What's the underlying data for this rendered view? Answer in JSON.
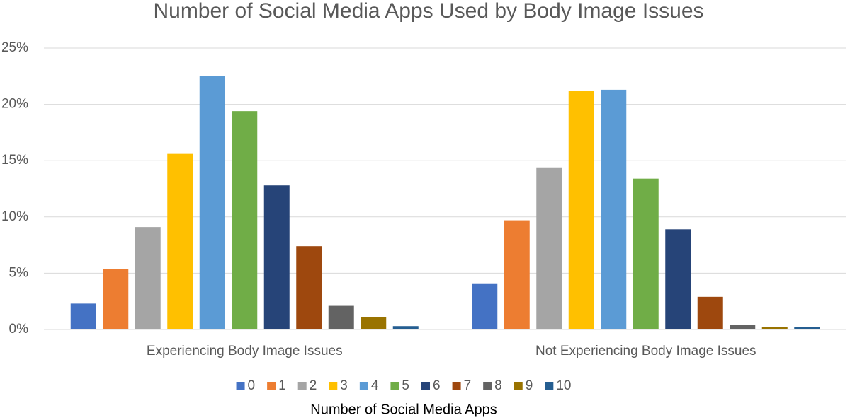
{
  "chart_data": {
    "type": "bar",
    "title": "Number of Social Media Apps Used by Body Image Issues",
    "xlabel": "Number of Social Media Apps",
    "categories": [
      "Experiencing Body Image Issues",
      "Not Experiencing Body Image Issues"
    ],
    "series": [
      {
        "name": "0",
        "color": "#4472c4",
        "values": [
          2.3,
          4.1
        ]
      },
      {
        "name": "1",
        "color": "#ed7d31",
        "values": [
          5.4,
          9.7
        ]
      },
      {
        "name": "2",
        "color": "#a5a5a5",
        "values": [
          9.1,
          14.4
        ]
      },
      {
        "name": "3",
        "color": "#ffc000",
        "values": [
          15.6,
          21.2
        ]
      },
      {
        "name": "4",
        "color": "#5b9bd5",
        "values": [
          22.5,
          21.3
        ]
      },
      {
        "name": "5",
        "color": "#70ad47",
        "values": [
          19.4,
          13.4
        ]
      },
      {
        "name": "6",
        "color": "#264478",
        "values": [
          12.8,
          8.9
        ]
      },
      {
        "name": "7",
        "color": "#9e480e",
        "values": [
          7.4,
          2.9
        ]
      },
      {
        "name": "8",
        "color": "#636363",
        "values": [
          2.1,
          0.4
        ]
      },
      {
        "name": "9",
        "color": "#997300",
        "values": [
          1.1,
          0.2
        ]
      },
      {
        "name": "10",
        "color": "#255e91",
        "values": [
          0.3,
          0.2
        ]
      }
    ],
    "ylim": [
      0,
      25
    ],
    "yticks": [
      {
        "value": 0,
        "label": "0%"
      },
      {
        "value": 5,
        "label": "5%"
      },
      {
        "value": 10,
        "label": "10%"
      },
      {
        "value": 15,
        "label": "15%"
      },
      {
        "value": 20,
        "label": "20%"
      },
      {
        "value": 25,
        "label": "25%"
      }
    ],
    "grid": true,
    "legend": "bottom"
  }
}
